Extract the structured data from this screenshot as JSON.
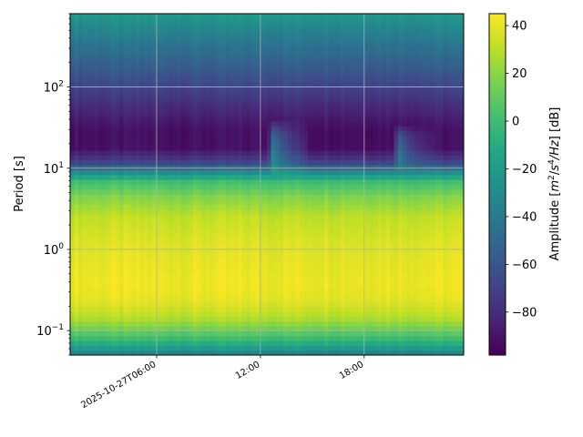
{
  "chart_data": {
    "type": "heatmap",
    "title": "",
    "xlabel": "",
    "ylabel": "Period [s]",
    "x_axis": {
      "kind": "time",
      "range": [
        "2025-10-27T01:00",
        "2025-10-27T23:45"
      ],
      "ticks": [
        {
          "value": "2025-10-27T06:00",
          "label": "2025-10-27T06:00"
        },
        {
          "value": "2025-10-27T12:00",
          "label": "12:00"
        },
        {
          "value": "2025-10-27T18:00",
          "label": "18:00"
        }
      ]
    },
    "y_axis": {
      "scale": "log",
      "range": [
        0.05,
        800
      ],
      "ticks": [
        {
          "value": 0.1,
          "base": "10",
          "exp": "−1"
        },
        {
          "value": 1,
          "base": "10",
          "exp": "0"
        },
        {
          "value": 10,
          "base": "10",
          "exp": "1"
        },
        {
          "value": 100,
          "base": "10",
          "exp": "2"
        }
      ]
    },
    "grid": true,
    "colorbar": {
      "label_main": "Amplitude [",
      "label_expr_m": "m",
      "label_expr_m_exp": "2",
      "label_expr_slash": "/",
      "label_expr_s": "s",
      "label_expr_s_exp": "4",
      "label_expr_hz": "/Hz",
      "label_tail": "] [dB]",
      "colormap": "viridis",
      "range": [
        -98,
        45
      ],
      "ticks": [
        {
          "value": -80,
          "label": "−80"
        },
        {
          "value": -60,
          "label": "−60"
        },
        {
          "value": -40,
          "label": "−40"
        },
        {
          "value": -20,
          "label": "−20"
        },
        {
          "value": 0,
          "label": "0"
        },
        {
          "value": 20,
          "label": "20"
        },
        {
          "value": 40,
          "label": "40"
        }
      ]
    },
    "period_profile_db": [
      {
        "period": 0.05,
        "db": -40
      },
      {
        "period": 0.06,
        "db": -22
      },
      {
        "period": 0.075,
        "db": -5
      },
      {
        "period": 0.1,
        "db": 12
      },
      {
        "period": 0.15,
        "db": 30
      },
      {
        "period": 0.25,
        "db": 40
      },
      {
        "period": 0.4,
        "db": 42
      },
      {
        "period": 0.7,
        "db": 40
      },
      {
        "period": 1.2,
        "db": 38
      },
      {
        "period": 2.5,
        "db": 32
      },
      {
        "period": 4.5,
        "db": 18
      },
      {
        "period": 7,
        "db": 0
      },
      {
        "period": 9,
        "db": -30
      },
      {
        "period": 12,
        "db": -70
      },
      {
        "period": 18,
        "db": -92
      },
      {
        "period": 30,
        "db": -92
      },
      {
        "period": 60,
        "db": -80
      },
      {
        "period": 150,
        "db": -60
      },
      {
        "period": 300,
        "db": -45
      },
      {
        "period": 600,
        "db": -30
      },
      {
        "period": 800,
        "db": -20
      }
    ],
    "events": [
      {
        "time": "2025-10-27T12:45",
        "period_range": [
          8,
          40
        ],
        "db_boost": 55
      },
      {
        "time": "2025-10-27T20:00",
        "period_range": [
          9,
          35
        ],
        "db_boost": 45
      }
    ]
  }
}
